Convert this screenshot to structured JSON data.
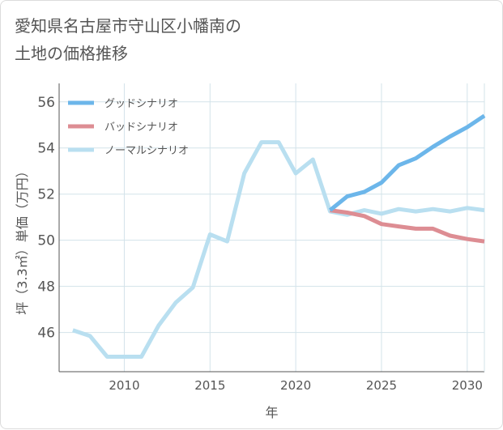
{
  "title_lines": [
    "愛知県名古屋市守山区小幡南の",
    "土地の価格推移"
  ],
  "chart_data": {
    "type": "line",
    "title": "愛知県名古屋市守山区小幡南の土地の価格推移",
    "xlabel": "年",
    "ylabel": "坪（3.3㎡）単価（万円）",
    "xlim": [
      2006.2,
      2031
    ],
    "ylim": [
      44.3,
      56.8
    ],
    "x_ticks": [
      2010,
      2015,
      2020,
      2025,
      2030
    ],
    "y_ticks": [
      46,
      48,
      50,
      52,
      54,
      56
    ],
    "grid": true,
    "legend_position": "top-left",
    "series": [
      {
        "name": "グッドシナリオ",
        "color": "#6cb6ea",
        "x": [
          2022,
          2023,
          2024,
          2025,
          2026,
          2027,
          2028,
          2029,
          2030,
          2031
        ],
        "values": [
          51.3,
          51.9,
          52.1,
          52.5,
          53.25,
          53.55,
          54.05,
          54.5,
          54.9,
          55.4
        ]
      },
      {
        "name": "バッドシナリオ",
        "color": "#dd8d93",
        "x": [
          2022,
          2023,
          2024,
          2025,
          2026,
          2027,
          2028,
          2029,
          2030,
          2031
        ],
        "values": [
          51.3,
          51.2,
          51.05,
          50.7,
          50.6,
          50.5,
          50.5,
          50.2,
          50.05,
          49.95
        ]
      },
      {
        "name": "ノーマルシナリオ",
        "color": "#b9dff0",
        "x": [
          2007,
          2008,
          2009,
          2010,
          2011,
          2012,
          2013,
          2014,
          2015,
          2016,
          2017,
          2018,
          2019,
          2020,
          2021,
          2022,
          2023,
          2024,
          2025,
          2026,
          2027,
          2028,
          2029,
          2030,
          2031
        ],
        "values": [
          46.1,
          45.85,
          44.95,
          44.95,
          44.95,
          46.3,
          47.3,
          47.95,
          50.25,
          49.95,
          52.9,
          54.25,
          54.25,
          52.9,
          53.5,
          51.25,
          51.1,
          51.3,
          51.15,
          51.35,
          51.25,
          51.35,
          51.25,
          51.4,
          51.3
        ]
      }
    ]
  }
}
